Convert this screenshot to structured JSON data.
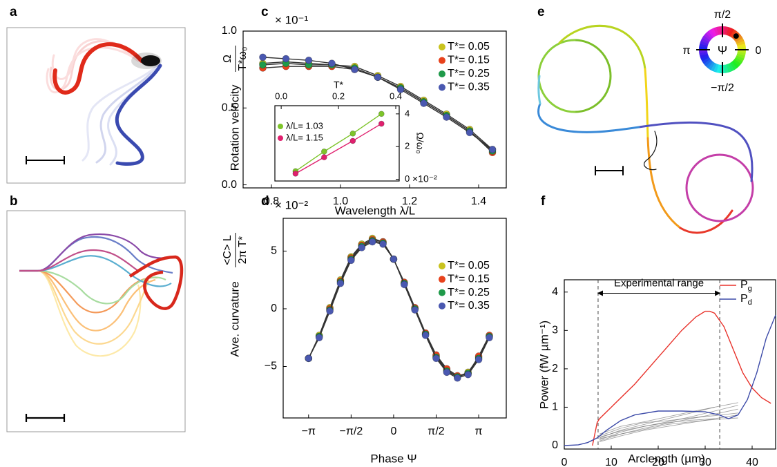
{
  "panel_labels": {
    "a": "a",
    "b": "b",
    "e": "e"
  },
  "color_wheel": {
    "title": "Ψ",
    "top": "π/2",
    "bottom": "−π/2",
    "left": "π",
    "right": "0"
  },
  "chart_data": [
    {
      "type": "line",
      "panel": "c",
      "multiplier": "× 10⁻¹",
      "xlabel": "Wavelength λ/L",
      "ylabel": "Rotation velocity",
      "ylabel_fraction": {
        "numerator": "Ω",
        "denominator": "T*ω₀"
      },
      "x": [
        0.775,
        0.842,
        0.908,
        0.975,
        1.041,
        1.108,
        1.174,
        1.241,
        1.307,
        1.374,
        1.44
      ],
      "series": [
        {
          "name": "T*= 0.05",
          "color": "#c9c31f",
          "values": [
            0.79,
            0.8,
            0.79,
            0.78,
            0.77,
            0.71,
            0.64,
            0.55,
            0.46,
            0.36,
            0.23
          ]
        },
        {
          "name": "T*= 0.15",
          "color": "#e8421c",
          "values": [
            0.76,
            0.77,
            0.77,
            0.77,
            0.75,
            0.7,
            0.63,
            0.54,
            0.45,
            0.35,
            0.21
          ]
        },
        {
          "name": "T*= 0.25",
          "color": "#1f9a4a",
          "values": [
            0.78,
            0.79,
            0.78,
            0.78,
            0.76,
            0.7,
            0.63,
            0.54,
            0.45,
            0.35,
            0.22
          ]
        },
        {
          "name": "T*= 0.35",
          "color": "#4a58b0",
          "values": [
            0.83,
            0.82,
            0.81,
            0.79,
            0.75,
            0.7,
            0.62,
            0.53,
            0.44,
            0.34,
            0.23
          ]
        }
      ],
      "xlim": [
        0.718,
        1.48
      ],
      "ylim": [
        -0.02,
        1.0
      ],
      "xticks": [
        0.8,
        {
          "value": 1.0,
          "label": "1.0"
        },
        1.2,
        1.4
      ],
      "yticks": [
        {
          "value": 0,
          "label": "0.0"
        },
        0.5,
        {
          "value": 1.0,
          "label": "1.0"
        }
      ],
      "legend": "upper right",
      "line_color": "#333333",
      "markers": true
    },
    {
      "type": "line",
      "xlabel": "T*",
      "ylabel": "Ω/ω₀",
      "multiplier": "×10⁻²",
      "x": [
        0.05,
        0.15,
        0.25,
        0.35
      ],
      "series": [
        {
          "name": "λ/L= 1.03",
          "color": "#7dc42a",
          "values": [
            0.5,
            1.7,
            2.8,
            4.0
          ]
        },
        {
          "name": "λ/L= 1.15",
          "color": "#e0206e",
          "values": [
            0.35,
            1.35,
            2.35,
            3.4
          ]
        }
      ],
      "xlim": [
        -0.022,
        0.412
      ],
      "ylim": [
        -0.1,
        4.5
      ],
      "xticks": [
        {
          "value": 0,
          "label": "0.0"
        },
        0.2,
        0.4
      ],
      "yticks": [
        0,
        2,
        4
      ],
      "xaxis_side": "top",
      "yaxis_side": "right",
      "legend": "upper left",
      "markers": true
    },
    {
      "type": "line",
      "panel": "d",
      "multiplier": "× 10⁻²",
      "xlabel": "Phase Ψ",
      "ylabel": "Ave. curvature",
      "ylabel_fraction": {
        "numerator": "<C> L",
        "denominator": "2π T*"
      },
      "x": [
        -3.1416,
        -2.7489,
        -2.3562,
        -1.9635,
        -1.5708,
        -1.1781,
        -0.7854,
        -0.3927,
        0,
        0.3927,
        0.7854,
        1.1781,
        1.5708,
        1.9635,
        2.3562,
        2.7489,
        3.1416,
        3.5343
      ],
      "series": [
        {
          "name": "T*= 0.05",
          "color": "#c9c31f",
          "values": [
            -4.3,
            -2.3,
            0.1,
            2.5,
            4.5,
            5.6,
            6.1,
            5.8,
            4.3,
            2.2,
            0.0,
            -2.2,
            -4.1,
            -5.3,
            -5.9,
            -5.5,
            -4.2,
            -2.4
          ]
        },
        {
          "name": "T*= 0.15",
          "color": "#e8421c",
          "values": [
            -4.3,
            -2.4,
            0.0,
            2.4,
            4.4,
            5.5,
            6.0,
            5.8,
            4.3,
            2.3,
            0.1,
            -2.1,
            -4.0,
            -5.2,
            -5.8,
            -5.6,
            -4.1,
            -2.3
          ]
        },
        {
          "name": "T*= 0.25",
          "color": "#1f9a4a",
          "values": [
            -4.3,
            -2.4,
            -0.1,
            2.3,
            4.3,
            5.4,
            5.9,
            5.7,
            4.3,
            2.2,
            0.0,
            -2.2,
            -4.2,
            -5.4,
            -5.9,
            -5.6,
            -4.3,
            -2.4
          ]
        },
        {
          "name": "T*= 0.35",
          "color": "#4a58b0",
          "values": [
            -4.3,
            -2.5,
            -0.2,
            2.2,
            4.2,
            5.3,
            5.8,
            5.6,
            4.3,
            2.1,
            -0.1,
            -2.3,
            -4.3,
            -5.5,
            -6.0,
            -5.7,
            -4.4,
            -2.5
          ]
        }
      ],
      "xlim": [
        -4.08,
        4.16
      ],
      "ylim": [
        -9.46,
        7.84
      ],
      "xticks": [
        {
          "value": -3.14159,
          "label": "−π"
        },
        {
          "value": -1.5708,
          "label": "−π/2"
        },
        0,
        {
          "value": 1.5708,
          "label": "π/2"
        },
        {
          "value": 3.14159,
          "label": "π"
        }
      ],
      "yticks": [
        {
          "value": -5,
          "label": "−5"
        },
        0,
        5
      ],
      "legend": "upper right",
      "line_color": "#333333",
      "markers": true
    },
    {
      "type": "line",
      "panel": "f",
      "xlabel": "Arclength (µm)",
      "ylabel": "Power (fW µm⁻¹)",
      "series": [
        {
          "color": "#666666",
          "x": [
            7.5,
            12,
            17,
            22,
            27,
            32,
            37
          ],
          "values": [
            0.15,
            0.35,
            0.5,
            0.62,
            0.75,
            0.9,
            1.05
          ]
        },
        {
          "color": "#666666",
          "x": [
            7.5,
            12,
            17,
            22,
            27,
            32,
            37
          ],
          "values": [
            0.2,
            0.4,
            0.55,
            0.7,
            0.85,
            1.0,
            1.12
          ]
        },
        {
          "color": "#666666",
          "x": [
            7.5,
            12,
            17,
            22,
            27,
            32,
            37
          ],
          "values": [
            0.1,
            0.25,
            0.4,
            0.5,
            0.6,
            0.7,
            0.8
          ]
        },
        {
          "color": "#666666",
          "x": [
            7.5,
            12,
            17,
            22,
            27,
            32,
            37
          ],
          "values": [
            0.25,
            0.45,
            0.6,
            0.65,
            0.72,
            0.78,
            0.85
          ]
        },
        {
          "color": "#666666",
          "x": [
            7.5,
            12,
            17,
            22,
            27,
            32,
            37
          ],
          "values": [
            0.18,
            0.3,
            0.45,
            0.58,
            0.7,
            0.82,
            0.95
          ]
        },
        {
          "color": "#666666",
          "x": [
            7.5,
            12,
            17,
            22,
            27,
            32,
            37
          ],
          "values": [
            0.12,
            0.3,
            0.42,
            0.55,
            0.62,
            0.68,
            0.72
          ]
        },
        {
          "color": "#666666",
          "x": [
            7.5,
            12,
            17,
            22,
            27,
            32
          ],
          "values": [
            0.3,
            0.5,
            0.62,
            0.75,
            0.88,
            1.0
          ]
        },
        {
          "color": "#666666",
          "x": [
            7.5,
            12,
            17,
            22,
            27,
            32
          ],
          "values": [
            0.22,
            0.38,
            0.5,
            0.6,
            0.66,
            0.7
          ]
        },
        {
          "name": "Pg",
          "color": "#e8312a",
          "x": [
            6,
            6.5,
            7,
            7.5,
            10,
            15,
            20,
            25,
            28,
            30,
            31,
            32,
            34,
            36,
            38,
            40,
            42,
            44
          ],
          "values": [
            0,
            0.3,
            0.6,
            0.7,
            1.0,
            1.6,
            2.3,
            3.0,
            3.35,
            3.5,
            3.5,
            3.45,
            3.1,
            2.5,
            1.9,
            1.5,
            1.25,
            1.1
          ]
        },
        {
          "name": "Pd",
          "color": "#3c4aa8",
          "x": [
            0,
            3,
            5,
            7,
            9,
            12,
            15,
            20,
            25,
            30,
            33,
            35,
            37,
            39,
            41,
            43,
            45
          ],
          "values": [
            0,
            0.02,
            0.08,
            0.2,
            0.4,
            0.65,
            0.8,
            0.9,
            0.9,
            0.88,
            0.8,
            0.7,
            0.8,
            1.2,
            1.9,
            2.8,
            3.4
          ]
        }
      ],
      "xlim": [
        0,
        45
      ],
      "ylim": [
        -0.09,
        4.32
      ],
      "xticks": [
        0,
        10,
        20,
        30,
        40
      ],
      "yticks": [
        0,
        1,
        2,
        3,
        4
      ],
      "vlines": [
        7.2,
        33.1
      ],
      "annotation": {
        "text": "Experimental range",
        "x": [
          7.2,
          33.1
        ],
        "y": 3.97
      },
      "legend": "upper right",
      "markers": false,
      "legend_subscript": true
    }
  ]
}
